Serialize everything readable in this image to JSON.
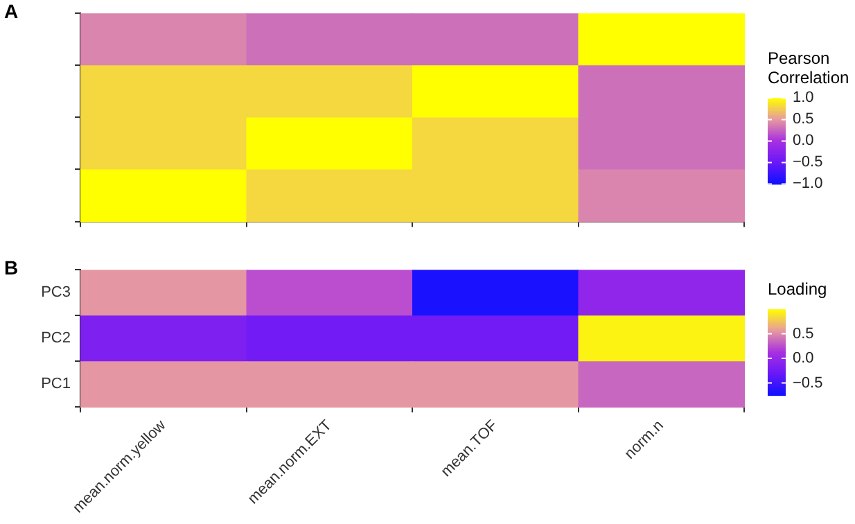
{
  "chart_data": [
    {
      "type": "heatmap",
      "title": "A",
      "categories": [
        null,
        null,
        null,
        null
      ],
      "y_categories": [
        null,
        null,
        null,
        null
      ],
      "cells": [
        [
          0.4,
          0.3,
          0.3,
          1.0
        ],
        [
          0.8,
          0.8,
          1.0,
          0.3
        ],
        [
          0.8,
          1.0,
          0.8,
          0.3
        ],
        [
          1.0,
          0.8,
          0.8,
          0.4
        ]
      ],
      "clabel": "Pearson Correlation",
      "clim": [
        -1,
        1
      ],
      "cticks": [
        {
          "value": 1,
          "label": "1.0"
        },
        {
          "value": 0.5,
          "label": "0.5"
        },
        {
          "value": 0,
          "label": "0.0"
        },
        {
          "value": -0.5,
          "label": "−0.5"
        },
        {
          "value": -1,
          "label": "−1.0"
        }
      ],
      "tick_labels": false
    },
    {
      "type": "heatmap",
      "title": "B",
      "categories": [
        "mean.norm.yellow",
        "mean.norm.EXT",
        "mean.TOF",
        "norm.n"
      ],
      "y_categories": [
        "PC3",
        "PC2",
        "PC1"
      ],
      "cells": [
        [
          0.55,
          0.25,
          -0.7,
          -0.05
        ],
        [
          -0.17,
          -0.25,
          -0.25,
          0.95
        ],
        [
          0.55,
          0.55,
          0.55,
          0.35
        ]
      ],
      "clabel": "Loading",
      "clim": [
        -0.75,
        1.0
      ],
      "cticks": [
        {
          "value": 0.5,
          "label": "0.5"
        },
        {
          "value": 0,
          "label": "0.0"
        },
        {
          "value": -0.5,
          "label": "−0.5"
        }
      ]
    }
  ]
}
